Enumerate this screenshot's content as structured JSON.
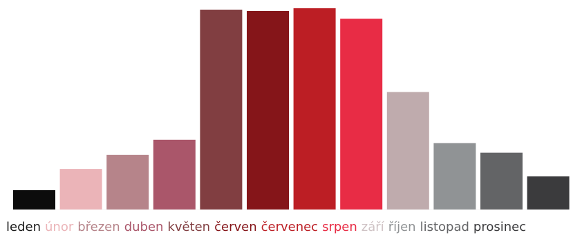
{
  "chart_data": {
    "type": "bar",
    "title": "",
    "xlabel": "",
    "ylabel": "",
    "grid": false,
    "legend": "none",
    "ylim": [
      0,
      100
    ],
    "categories": [
      "leden",
      "únor",
      "březen",
      "duben",
      "květen",
      "červen",
      "červenec",
      "srpen",
      "září",
      "říjen",
      "listopad",
      "prosinec"
    ],
    "values": [
      9.7,
      20.3,
      27.3,
      34.9,
      100,
      99.3,
      100.7,
      95.5,
      58.8,
      33.2,
      28.4,
      16.6
    ],
    "colors": [
      "#0c0c0c",
      "#ebb4b8",
      "#b6848a",
      "#aa566a",
      "#813e41",
      "#851519",
      "#bc1e24",
      "#e82c45",
      "#bfabad",
      "#909395",
      "#636466",
      "#3b3b3d"
    ],
    "label_colors": [
      "#1a1a1a",
      "#ebb4b8",
      "#b6848a",
      "#aa566a",
      "#813e41",
      "#851519",
      "#bc1e24",
      "#e82c45",
      "#cfc3c5",
      "#909395",
      "#636466",
      "#3b3b3d"
    ]
  }
}
